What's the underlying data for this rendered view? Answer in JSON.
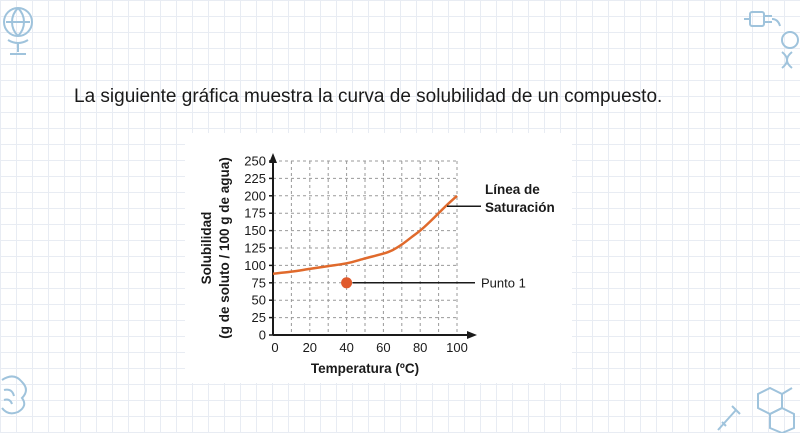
{
  "slide": {
    "text": "La siguiente gráfica muestra la curva de solubilidad de un compuesto."
  },
  "decorations": {
    "top_left_icon": "globe-icon",
    "top_right_icon": "plug-icon",
    "top_right_icon_2": "dna-icon",
    "bottom_left_icon": "brain-icon",
    "bottom_right_icon": "molecule-icon",
    "bottom_right_icon_2": "syringe-icon",
    "color": "#9fc3dc"
  },
  "chart_data": {
    "type": "line",
    "xlabel": "Temperatura (ºC)",
    "ylabel": "Solubilidad",
    "ylabel2": "(g de soluto / 100 g de agua)",
    "xlim": [
      0,
      100
    ],
    "ylim": [
      0,
      250
    ],
    "xticks": [
      "0",
      "20",
      "40",
      "60",
      "80",
      "100"
    ],
    "yticks": [
      "0",
      "25",
      "50",
      "75",
      "100",
      "125",
      "150",
      "175",
      "200",
      "225",
      "250"
    ],
    "grid": true,
    "series": [
      {
        "name": "Línea de Saturación",
        "color": "#e06a2c",
        "points": [
          [
            0,
            88
          ],
          [
            10,
            91
          ],
          [
            20,
            95
          ],
          [
            30,
            99
          ],
          [
            40,
            103
          ],
          [
            50,
            110
          ],
          [
            60,
            117
          ],
          [
            65,
            122
          ],
          [
            70,
            130
          ],
          [
            75,
            140
          ],
          [
            80,
            150
          ],
          [
            85,
            162
          ],
          [
            90,
            175
          ],
          [
            95,
            188
          ],
          [
            100,
            200
          ]
        ]
      }
    ],
    "annotations": [
      {
        "label_line1": "Línea de",
        "label_line2": "Saturación",
        "x": 100,
        "y": 185
      },
      {
        "label": "Punto 1",
        "x": 40,
        "y": 75,
        "color": "#e05a2c"
      }
    ]
  }
}
